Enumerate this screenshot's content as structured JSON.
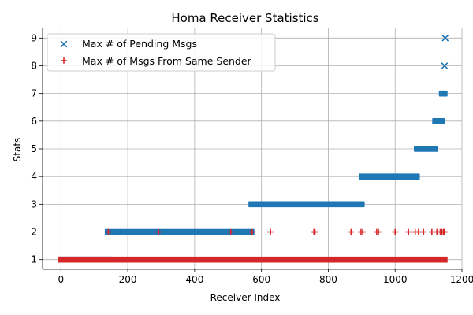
{
  "chart_data": {
    "type": "scatter",
    "title": "Homa Receiver Statistics",
    "xlabel": "Receiver Index",
    "ylabel": "Stats",
    "xlim": [
      -55,
      1200
    ],
    "ylim": [
      0.65,
      9.35
    ],
    "xticks": [
      0,
      200,
      400,
      600,
      800,
      1000,
      1200
    ],
    "yticks": [
      1,
      2,
      3,
      4,
      5,
      6,
      7,
      8,
      9
    ],
    "grid": true,
    "legend": "upper-left",
    "series": [
      {
        "name": "Max # of Pending Msgs",
        "marker": "x",
        "color": "#1f77b4",
        "segments": [
          {
            "y": 1,
            "x_start": 0,
            "x_end": 145
          },
          {
            "y": 2,
            "x_start": 140,
            "x_end": 570
          },
          {
            "y": 3,
            "x_start": 570,
            "x_end": 900
          },
          {
            "y": 4,
            "x_start": 900,
            "x_end": 1065
          },
          {
            "y": 5,
            "x_start": 1065,
            "x_end": 1120
          },
          {
            "y": 6,
            "x_start": 1120,
            "x_end": 1140
          },
          {
            "y": 7,
            "x_start": 1140,
            "x_end": 1148
          }
        ],
        "points": [
          [
            1148,
            8
          ],
          [
            1150,
            9
          ]
        ]
      },
      {
        "name": "Max # of Msgs From Same Sender",
        "marker": "+",
        "color": "#d62728",
        "segments": [
          {
            "y": 1,
            "x_start": 0,
            "x_end": 1148
          }
        ],
        "points": [
          [
            142,
            2
          ],
          [
            292,
            2
          ],
          [
            508,
            2
          ],
          [
            572,
            2
          ],
          [
            627,
            2
          ],
          [
            757,
            2
          ],
          [
            760,
            2
          ],
          [
            868,
            2
          ],
          [
            898,
            2
          ],
          [
            903,
            2
          ],
          [
            945,
            2
          ],
          [
            950,
            2
          ],
          [
            1000,
            2
          ],
          [
            1040,
            2
          ],
          [
            1060,
            2
          ],
          [
            1070,
            2
          ],
          [
            1085,
            2
          ],
          [
            1110,
            2
          ],
          [
            1125,
            2
          ],
          [
            1135,
            2
          ],
          [
            1140,
            2
          ],
          [
            1145,
            2
          ],
          [
            1148,
            2
          ]
        ]
      }
    ]
  }
}
